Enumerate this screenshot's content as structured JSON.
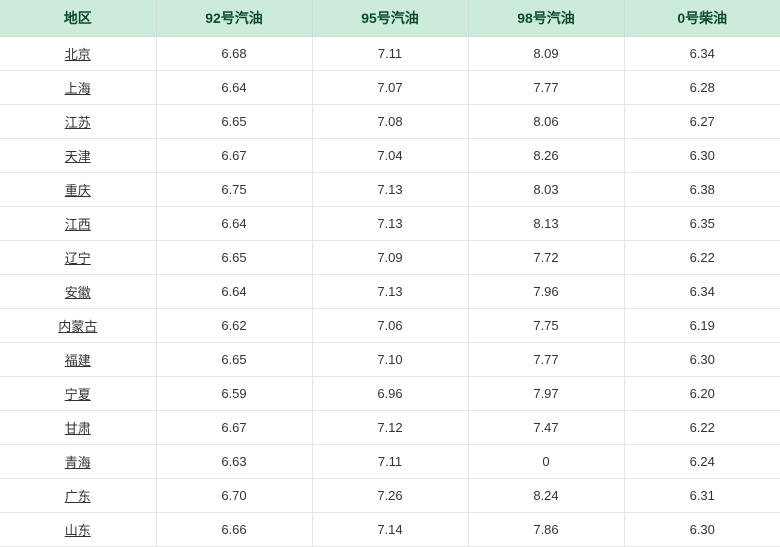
{
  "table": {
    "columns": [
      "地区",
      "92号汽油",
      "95号汽油",
      "98号汽油",
      "0号柴油"
    ],
    "col_widths": [
      "156px",
      "156px",
      "156px",
      "156px",
      "156px"
    ],
    "header_bg": "#ccebdb",
    "header_color": "#0a4d2a",
    "header_fontsize": 14,
    "cell_fontsize": 13,
    "cell_color": "#333333",
    "border_color": "#e6e6e6",
    "region_underline": true,
    "rows": [
      {
        "region": "北京",
        "p92": "6.68",
        "p95": "7.11",
        "p98": "8.09",
        "d0": "6.34"
      },
      {
        "region": "上海",
        "p92": "6.64",
        "p95": "7.07",
        "p98": "7.77",
        "d0": "6.28"
      },
      {
        "region": "江苏",
        "p92": "6.65",
        "p95": "7.08",
        "p98": "8.06",
        "d0": "6.27"
      },
      {
        "region": "天津",
        "p92": "6.67",
        "p95": "7.04",
        "p98": "8.26",
        "d0": "6.30"
      },
      {
        "region": "重庆",
        "p92": "6.75",
        "p95": "7.13",
        "p98": "8.03",
        "d0": "6.38"
      },
      {
        "region": "江西",
        "p92": "6.64",
        "p95": "7.13",
        "p98": "8.13",
        "d0": "6.35"
      },
      {
        "region": "辽宁",
        "p92": "6.65",
        "p95": "7.09",
        "p98": "7.72",
        "d0": "6.22"
      },
      {
        "region": "安徽",
        "p92": "6.64",
        "p95": "7.13",
        "p98": "7.96",
        "d0": "6.34"
      },
      {
        "region": "内蒙古",
        "p92": "6.62",
        "p95": "7.06",
        "p98": "7.75",
        "d0": "6.19"
      },
      {
        "region": "福建",
        "p92": "6.65",
        "p95": "7.10",
        "p98": "7.77",
        "d0": "6.30"
      },
      {
        "region": "宁夏",
        "p92": "6.59",
        "p95": "6.96",
        "p98": "7.97",
        "d0": "6.20"
      },
      {
        "region": "甘肃",
        "p92": "6.67",
        "p95": "7.12",
        "p98": "7.47",
        "d0": "6.22"
      },
      {
        "region": "青海",
        "p92": "6.63",
        "p95": "7.11",
        "p98": "0",
        "d0": "6.24"
      },
      {
        "region": "广东",
        "p92": "6.70",
        "p95": "7.26",
        "p98": "8.24",
        "d0": "6.31"
      },
      {
        "region": "山东",
        "p92": "6.66",
        "p95": "7.14",
        "p98": "7.86",
        "d0": "6.30"
      }
    ]
  }
}
